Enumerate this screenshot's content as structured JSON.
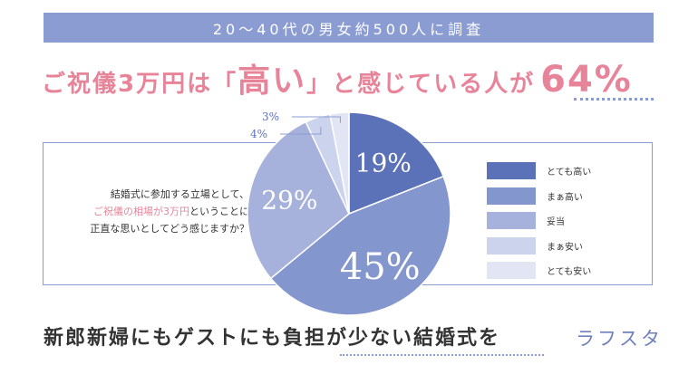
{
  "header": {
    "survey_text": "20〜40代の男女約500人に調査",
    "headline_part1": "ご祝儀3万円は「",
    "headline_emph": "高い",
    "headline_part2": "」と感じている人が",
    "headline_pct": "64%"
  },
  "question": {
    "line1": "結婚式に参加する立場として、",
    "line2_highlight": "ご祝儀の相場が3万円",
    "line2_rest": "ということに",
    "line3": "正直な思いとしてどう感じますか？"
  },
  "chart_data": {
    "type": "pie",
    "start": "12 o'clock, clockwise",
    "categories": [
      "とても高い",
      "まぁ高い",
      "妥当",
      "まぁ安い",
      "とても安い"
    ],
    "values": [
      19,
      45,
      29,
      4,
      3
    ],
    "data_labels": [
      "19%",
      "45%",
      "29%",
      "4%",
      "3%"
    ],
    "colors": [
      "#5b72b9",
      "#8396cd",
      "#a6b2dc",
      "#ccd3ec",
      "#e2e6f4"
    ],
    "legend_position": "right"
  },
  "footer": {
    "tagline": "新郎新婦にもゲストにも負担が少ない結婚式を",
    "logo": "ラフスタ"
  },
  "colors": {
    "accent_pink": "#e8849a",
    "banner_blue": "#8b9cd3",
    "text_dark": "#333333"
  }
}
